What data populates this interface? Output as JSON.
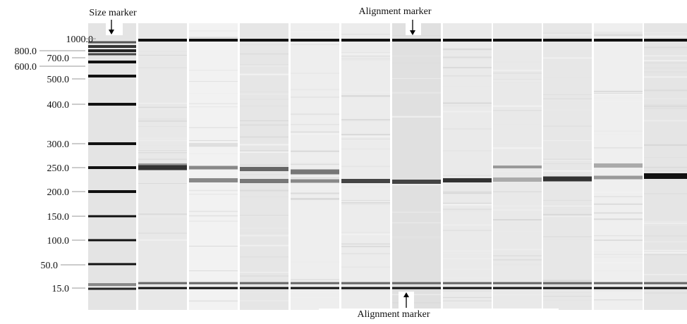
{
  "annotations": {
    "size_marker": "Size marker",
    "alignment_marker_top": "Alignment marker",
    "alignment_marker_bottom": "Alignment marker"
  },
  "size_labels": [
    "1000.0",
    "800.0",
    "700.0",
    "600.0",
    "500.0",
    "400.0",
    "300.0",
    "250.0",
    "200.0",
    "150.0",
    "100.0",
    "50.0",
    "15.0"
  ]
}
